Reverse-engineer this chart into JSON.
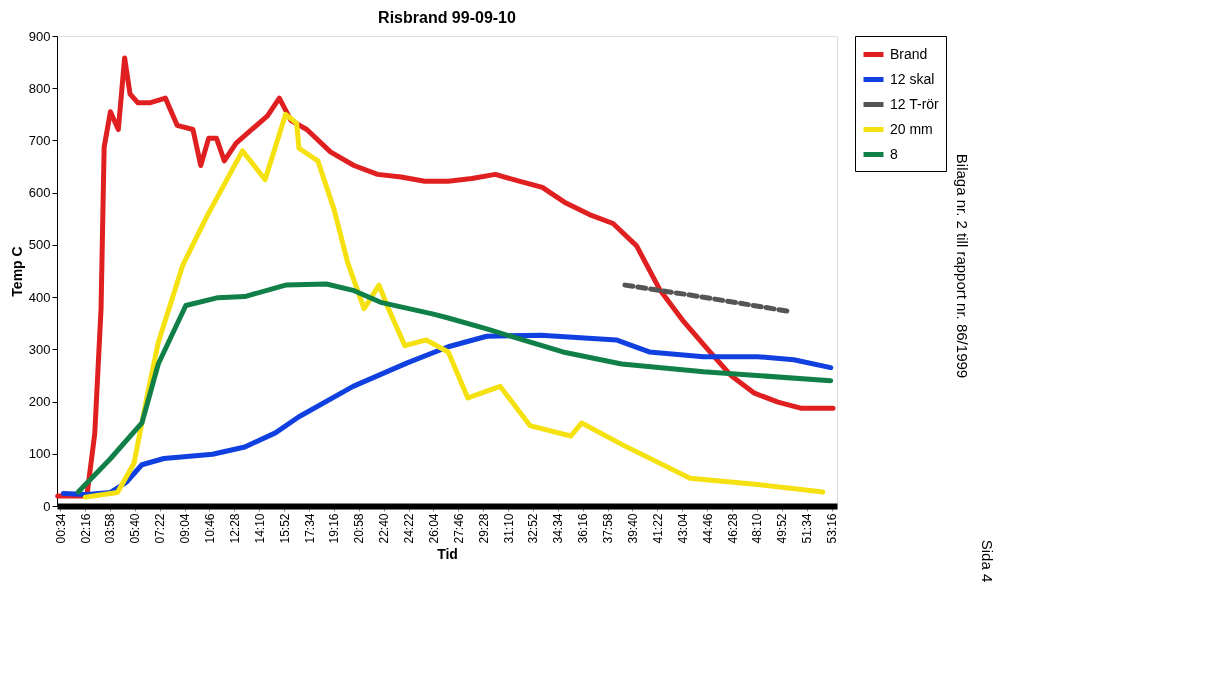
{
  "chart_data": {
    "type": "line",
    "title": "Risbrand 99-09-10",
    "xlabel": "Tid",
    "ylabel": "Temp C",
    "xlim": [
      0.35,
      53.64
    ],
    "ylim": [
      0,
      900
    ],
    "yticks": [
      0,
      100,
      200,
      300,
      400,
      500,
      600,
      700,
      800,
      900
    ],
    "xticks": [
      {
        "value": 0.567,
        "label": "00:34"
      },
      {
        "value": 2.267,
        "label": "02:16"
      },
      {
        "value": 3.967,
        "label": "03:58"
      },
      {
        "value": 5.667,
        "label": "05:40"
      },
      {
        "value": 7.367,
        "label": "07:22"
      },
      {
        "value": 9.067,
        "label": "09:04"
      },
      {
        "value": 10.767,
        "label": "10:46"
      },
      {
        "value": 12.467,
        "label": "12:28"
      },
      {
        "value": 14.167,
        "label": "14:10"
      },
      {
        "value": 15.867,
        "label": "15:52"
      },
      {
        "value": 17.567,
        "label": "17:34"
      },
      {
        "value": 19.267,
        "label": "19:16"
      },
      {
        "value": 20.967,
        "label": "20:58"
      },
      {
        "value": 22.667,
        "label": "22:40"
      },
      {
        "value": 24.367,
        "label": "24:22"
      },
      {
        "value": 26.067,
        "label": "26:04"
      },
      {
        "value": 27.767,
        "label": "27:46"
      },
      {
        "value": 29.467,
        "label": "29:28"
      },
      {
        "value": 31.167,
        "label": "31:10"
      },
      {
        "value": 32.867,
        "label": "32:52"
      },
      {
        "value": 34.567,
        "label": "34:34"
      },
      {
        "value": 36.267,
        "label": "36:16"
      },
      {
        "value": 37.967,
        "label": "37:58"
      },
      {
        "value": 39.667,
        "label": "39:40"
      },
      {
        "value": 41.367,
        "label": "41:22"
      },
      {
        "value": 43.067,
        "label": "43:04"
      },
      {
        "value": 44.767,
        "label": "44:46"
      },
      {
        "value": 46.467,
        "label": "46:28"
      },
      {
        "value": 48.167,
        "label": "48:10"
      },
      {
        "value": 49.867,
        "label": "49:52"
      },
      {
        "value": 51.567,
        "label": "51:34"
      },
      {
        "value": 53.267,
        "label": "53:16"
      }
    ],
    "grid": false,
    "legend": "right",
    "marker": "none",
    "annotations": [
      "Bilaga nr. 2 till rapport nr. 86/1999",
      "Sida 4"
    ],
    "series": [
      {
        "name": "Brand",
        "color": "#e02020",
        "line_style": "solid",
        "x": [
          0.4,
          2.39,
          2.93,
          3.36,
          3.57,
          4.0,
          4.54,
          4.97,
          5.34,
          5.88,
          6.68,
          7.76,
          8.56,
          9.64,
          10.17,
          10.71,
          11.25,
          11.78,
          12.59,
          13.66,
          14.73,
          15.54,
          16.34,
          17.42,
          19.03,
          20.64,
          22.25,
          23.86,
          25.47,
          27.08,
          28.69,
          30.3,
          31.92,
          33.51,
          35.12,
          36.73,
          38.34,
          39.95,
          41.56,
          43.17,
          44.78,
          46.39,
          48.0,
          49.61,
          51.22,
          53.37
        ],
        "values": [
          19,
          19,
          139,
          378,
          687,
          755,
          721,
          858,
          789,
          772,
          772,
          781,
          729,
          721,
          652,
          704,
          704,
          661,
          695,
          721,
          747,
          781,
          738,
          721,
          678,
          652,
          635,
          630,
          622,
          622,
          627,
          635,
          622,
          610,
          580,
          558,
          541,
          498,
          413,
          353,
          301,
          250,
          216,
          199,
          187,
          187
        ]
      },
      {
        "name": "12 skal",
        "color": "#1040e0",
        "line_style": "solid",
        "x": [
          0.78,
          2.39,
          4.0,
          5.07,
          6.15,
          7.65,
          10.98,
          13.18,
          15.27,
          16.88,
          20.58,
          24.28,
          27.08,
          29.71,
          33.41,
          38.56,
          40.81,
          44.52,
          48.22,
          50.69,
          53.21
        ],
        "values": [
          24,
          22,
          26,
          45,
          79,
          91,
          99,
          113,
          140,
          171,
          229,
          274,
          305,
          325,
          327,
          318,
          295,
          286,
          286,
          280,
          265
        ]
      },
      {
        "name": "12 T-rör",
        "color": "#555555",
        "line_style": "dashed",
        "x": [
          39.15,
          43.6,
          50.53
        ],
        "values": [
          423,
          404,
          372
        ]
      },
      {
        "name": "20 mm",
        "color": "#f5e010",
        "line_style": "solid",
        "x": [
          2.28,
          4.48,
          5.61,
          6.52,
          7.27,
          8.94,
          10.6,
          13.02,
          14.57,
          15.97,
          16.72,
          16.88,
          18.17,
          19.29,
          20.21,
          21.33,
          22.35,
          22.99,
          24.12,
          25.57,
          27.08,
          28.42,
          30.63,
          32.66,
          35.45,
          36.2,
          38.93,
          43.6,
          48.22,
          52.67
        ],
        "values": [
          17,
          26,
          82,
          212,
          313,
          461,
          555,
          680,
          625,
          750,
          733,
          685,
          661,
          567,
          466,
          378,
          423,
          378,
          307,
          318,
          295,
          207,
          229,
          154,
          134,
          159,
          118,
          53,
          41,
          27
        ]
      },
      {
        "name": "8",
        "color": "#108048",
        "line_style": "solid",
        "x": [
          1.8,
          3.95,
          6.15,
          7.27,
          9.15,
          11.35,
          13.18,
          15.97,
          18.76,
          20.58,
          22.46,
          26.0,
          27.08,
          29.71,
          34.91,
          38.93,
          44.52,
          53.21
        ],
        "values": [
          27,
          89,
          159,
          272,
          384,
          399,
          401,
          423,
          425,
          413,
          390,
          368,
          360,
          339,
          295,
          272,
          257,
          240
        ]
      }
    ]
  }
}
